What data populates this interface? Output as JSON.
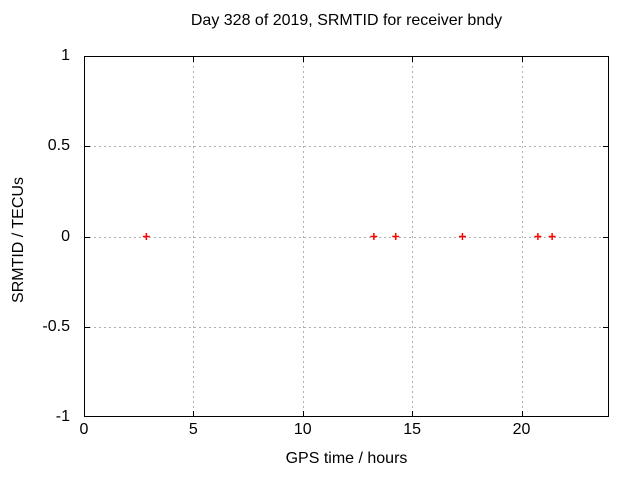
{
  "chart_data": {
    "type": "scatter",
    "title": "Day 328 of 2019, SRMTID for receiver bndy",
    "xlabel": "GPS time / hours",
    "ylabel": "SRMTID / TECUs",
    "xlim": [
      0,
      24
    ],
    "ylim": [
      -1,
      1
    ],
    "x_ticks": [
      0,
      5,
      10,
      15,
      20
    ],
    "x_tick_labels": [
      "0",
      "5",
      "10",
      "15",
      "20"
    ],
    "y_ticks": [
      1,
      0.5,
      0,
      -0.5,
      -1
    ],
    "y_tick_labels": [
      "1",
      "0.5",
      "0",
      "-0.5",
      "-1"
    ],
    "grid": true,
    "legend": "none",
    "series": [
      {
        "name": "SRMTID",
        "marker": "plus",
        "color": "#ff0000",
        "x": [
          2.85,
          13.25,
          14.25,
          17.3,
          20.75,
          21.4
        ],
        "y": [
          0,
          0,
          0,
          0,
          0,
          0
        ]
      }
    ],
    "colors": {
      "background": "#ffffff",
      "axis": "#000000",
      "grid": "#b0b0b0",
      "text": "#000000",
      "marker": "#ff0000"
    }
  }
}
